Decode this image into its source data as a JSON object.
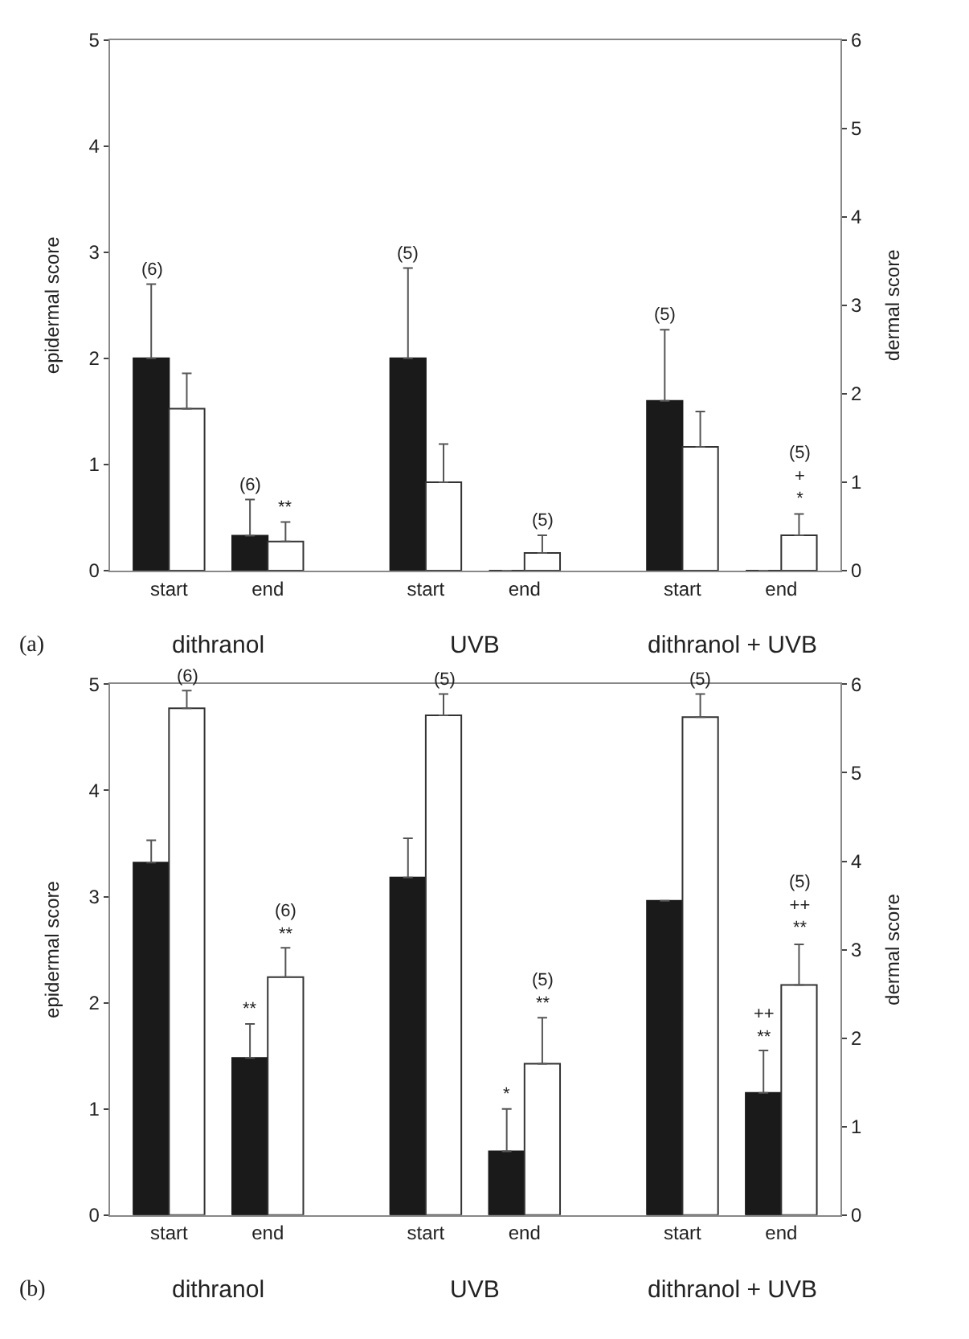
{
  "chart_data": [
    {
      "type": "bar",
      "categories": [
        "start",
        "end",
        "start",
        "end",
        "start",
        "end"
      ],
      "ylabel": "epidermal score",
      "y2label": "dermal score",
      "ylim": [
        0,
        5
      ],
      "yticks": [
        0,
        1,
        2,
        3,
        4,
        5
      ],
      "y2lim": [
        0,
        6
      ],
      "y2ticks": [
        0,
        1,
        2,
        3,
        4,
        5,
        6
      ],
      "annotations": [
        "(a)",
        "dithranol",
        "UVB",
        "dithranol + UVB",
        "(6)",
        "(6)",
        "**",
        "(5)",
        "(5)",
        "(5)",
        "(5)\n+\n*"
      ],
      "series": [
        {
          "color": "#1a1a1a",
          "values": [
            2.0,
            0.33,
            2.0,
            0,
            1.6,
            0
          ],
          "errors": [
            [
              2.0,
              2.7
            ],
            [
              0.33,
              0.67
            ],
            [
              2.0,
              2.85
            ],
            null,
            [
              1.6,
              2.27
            ],
            null
          ]
        },
        {
          "color": "#ffffff",
          "axis": "y2",
          "values": [
            1.83,
            0.33,
            1.0,
            0.2,
            1.4,
            0.4
          ],
          "errors": [
            [
              1.83,
              2.23
            ],
            [
              0.33,
              0.55
            ],
            [
              1.0,
              1.43
            ],
            [
              0.2,
              0.4
            ],
            [
              1.4,
              1.8
            ],
            [
              0.4,
              0.64
            ]
          ]
        }
      ]
    },
    {
      "type": "bar",
      "categories": [
        "start",
        "end",
        "start",
        "end",
        "start",
        "end"
      ],
      "ylabel": "epidermal score",
      "y2label": "dermal score",
      "ylim": [
        0,
        5
      ],
      "yticks": [
        0,
        1,
        2,
        3,
        4,
        5
      ],
      "y2lim": [
        0,
        6
      ],
      "y2ticks": [
        0,
        1,
        2,
        3,
        4,
        5,
        6
      ],
      "annotations": [
        "(b)",
        "dithranol",
        "UVB",
        "dithranol + UVB",
        "(6)",
        "**",
        "(6)\n**",
        "(5)",
        "*",
        "(5)\n**",
        "(5)",
        "++\n**",
        "(5)\n++\n**"
      ],
      "series": [
        {
          "color": "#1a1a1a",
          "values": [
            3.32,
            1.48,
            3.18,
            0.6,
            2.96,
            1.15
          ],
          "errors": [
            [
              3.32,
              3.53
            ],
            [
              1.48,
              1.8
            ],
            [
              3.18,
              3.55
            ],
            [
              0.6,
              1.0
            ],
            null,
            [
              1.15,
              1.55
            ]
          ]
        },
        {
          "color": "#ffffff",
          "axis": "y2",
          "values": [
            5.73,
            2.69,
            5.65,
            1.71,
            5.63,
            2.6
          ],
          "errors": [
            [
              5.73,
              5.93
            ],
            [
              2.69,
              3.02
            ],
            [
              5.65,
              5.89
            ],
            [
              1.71,
              2.23
            ],
            [
              5.63,
              5.89
            ],
            [
              2.6,
              3.06
            ]
          ]
        }
      ]
    }
  ]
}
